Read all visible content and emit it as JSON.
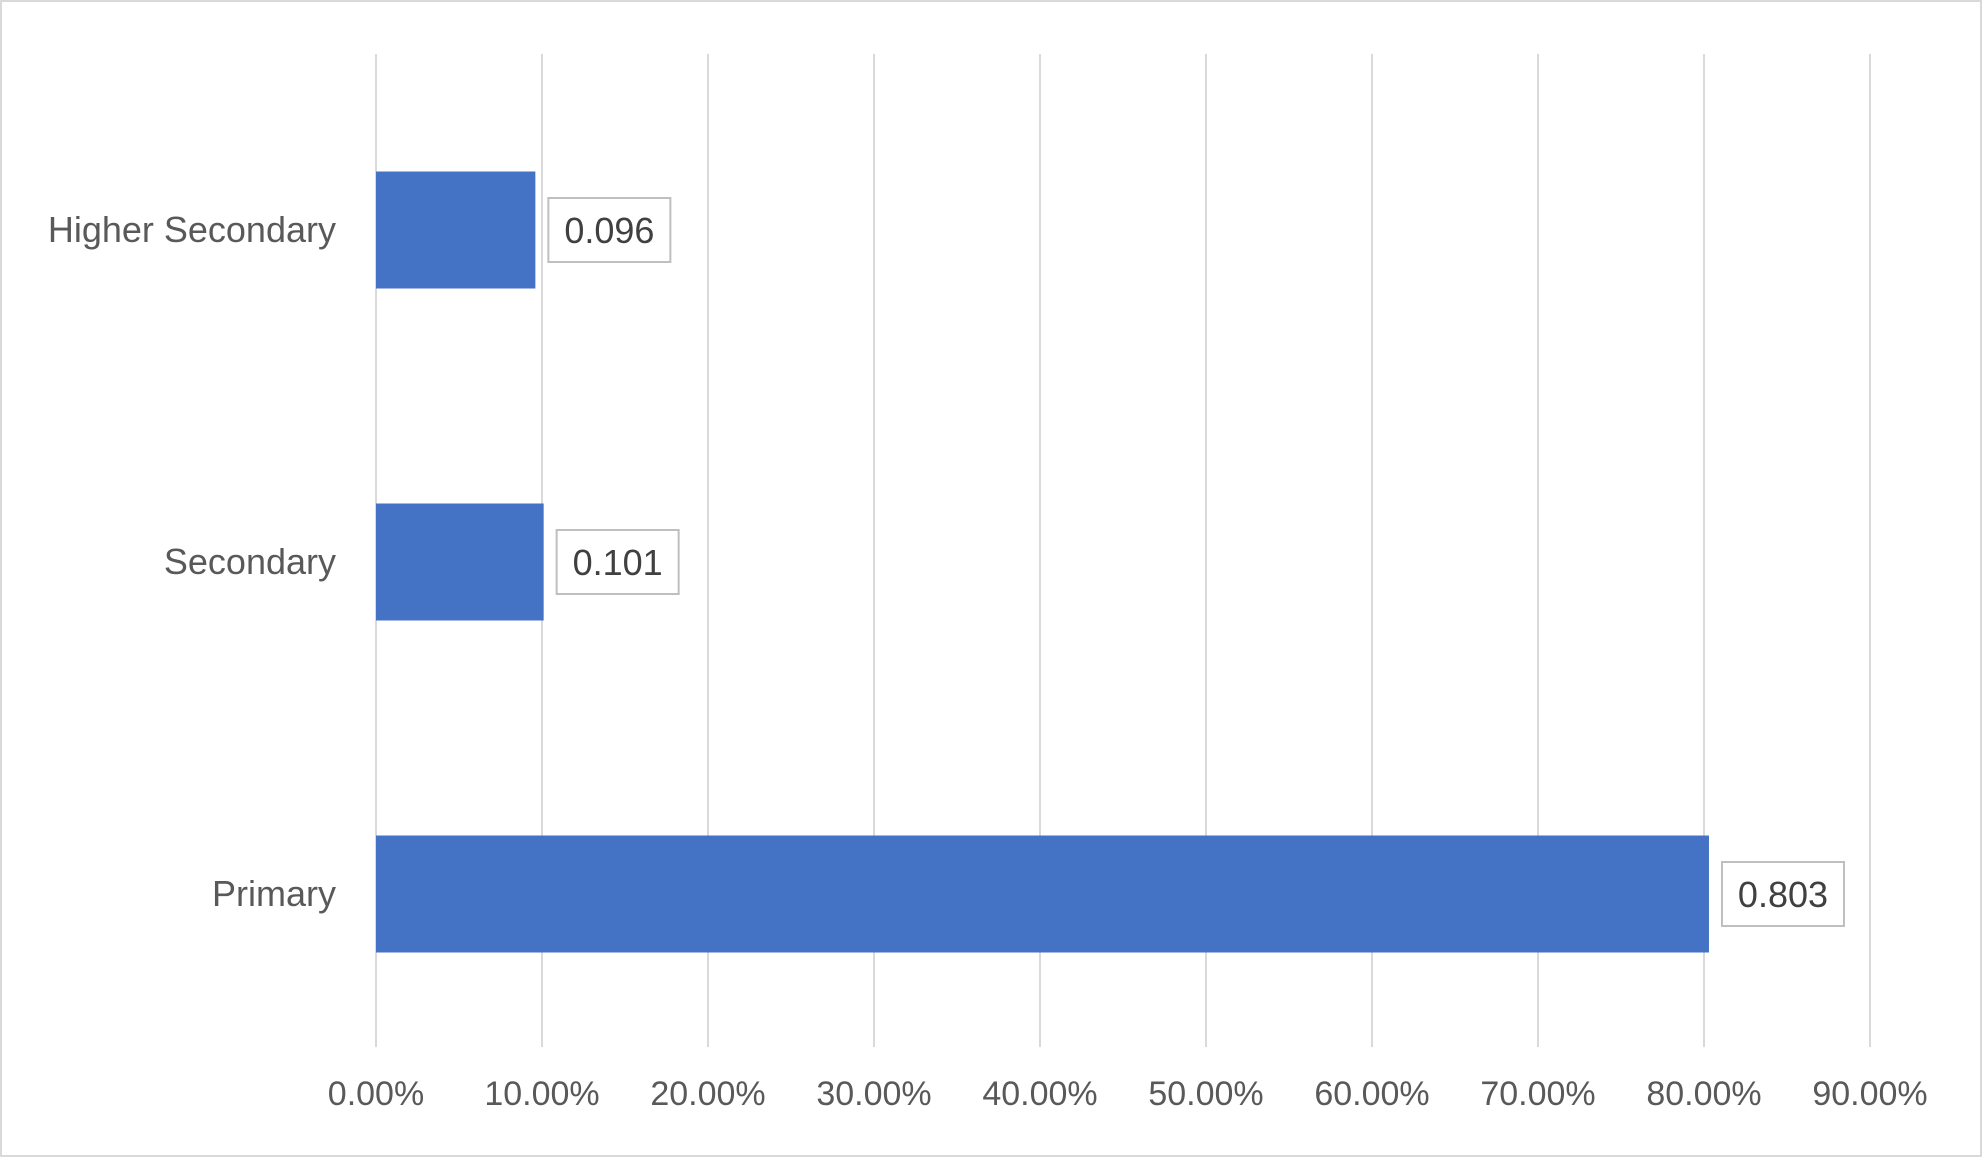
{
  "chart_data": {
    "type": "bar",
    "orientation": "horizontal",
    "title": "",
    "xlabel": "",
    "ylabel": "",
    "categories": [
      "Higher Secondary",
      "Secondary",
      "Primary"
    ],
    "values": [
      0.096,
      0.101,
      0.803
    ],
    "data_labels": [
      "0.096",
      "0.101",
      "0.803"
    ],
    "xlim": [
      0,
      0.9
    ],
    "x_ticks": [
      0,
      0.1,
      0.2,
      0.3,
      0.4,
      0.5,
      0.6,
      0.7,
      0.8,
      0.9
    ],
    "x_tick_labels": [
      "0.00%",
      "10.00%",
      "20.00%",
      "30.00%",
      "40.00%",
      "50.00%",
      "60.00%",
      "70.00%",
      "80.00%",
      "90.00%"
    ],
    "grid": "vertical major gridlines",
    "legend": "none",
    "colors": {
      "bar": "#4472C4",
      "gridline": "#d9d9d9",
      "label_text": "#595959",
      "data_label_border": "#bfbfbf"
    }
  }
}
